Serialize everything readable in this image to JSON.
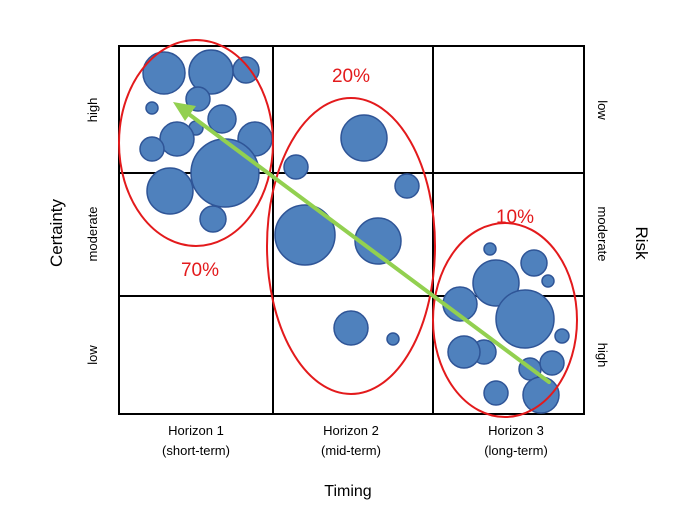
{
  "axes": {
    "x_title": "Timing",
    "y_title_left": "Certainty",
    "y_title_right": "Risk",
    "columns": [
      {
        "line1": "Horizon 1",
        "line2": "(short-term)"
      },
      {
        "line1": "Horizon 2",
        "line2": "(mid-term)"
      },
      {
        "line1": "Horizon 3",
        "line2": "(long-term)"
      }
    ],
    "rows_left": [
      "high",
      "moderate",
      "low"
    ],
    "rows_right": [
      "low",
      "moderate",
      "high"
    ]
  },
  "groups": [
    {
      "label": "70%"
    },
    {
      "label": "20%"
    },
    {
      "label": "10%"
    }
  ],
  "colors": {
    "bubble_fill": "#4f81bd",
    "bubble_stroke": "#2f5597",
    "ellipse_stroke": "#e31a1c",
    "arrow": "#92d050",
    "percent_text": "#e31a1c"
  }
}
